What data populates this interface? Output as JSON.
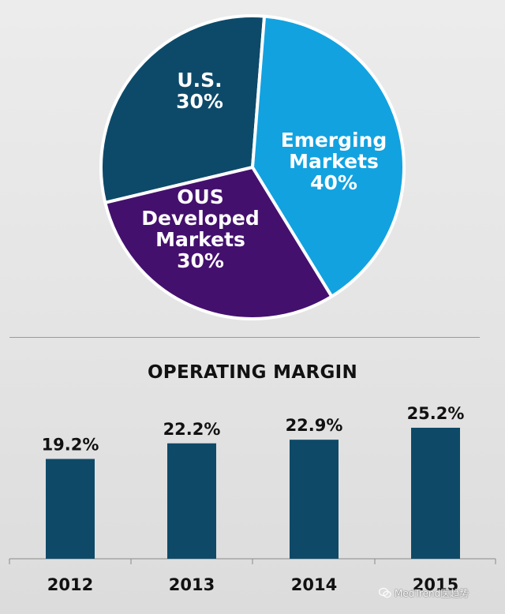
{
  "chart_data": [
    {
      "type": "pie",
      "slices": [
        {
          "label_lines": [
            "U.S."
          ],
          "value_label": "30%",
          "value": 30,
          "color": "#0d4a6a"
        },
        {
          "label_lines": [
            "Emerging",
            "Markets"
          ],
          "value_label": "40%",
          "value": 40,
          "color": "#12a2e0"
        },
        {
          "label_lines": [
            "OUS",
            "Developed",
            "Markets"
          ],
          "value_label": "30%",
          "value": 30,
          "color": "#44106e"
        }
      ],
      "slice_border_color": "#ffffff",
      "legend": "none"
    },
    {
      "type": "bar",
      "title": "OPERATING MARGIN",
      "categories": [
        "2012",
        "2013",
        "2014",
        "2015"
      ],
      "values": [
        19.2,
        22.2,
        22.9,
        25.2
      ],
      "data_labels": [
        "19.2%",
        "22.2%",
        "22.9%",
        "25.2%"
      ],
      "bar_color": "#0e4a68",
      "ylim": [
        0,
        30
      ],
      "grid": false,
      "legend": "none"
    }
  ],
  "watermark": {
    "text": "MedTrend医趋势",
    "icon": "wechat-icon"
  }
}
